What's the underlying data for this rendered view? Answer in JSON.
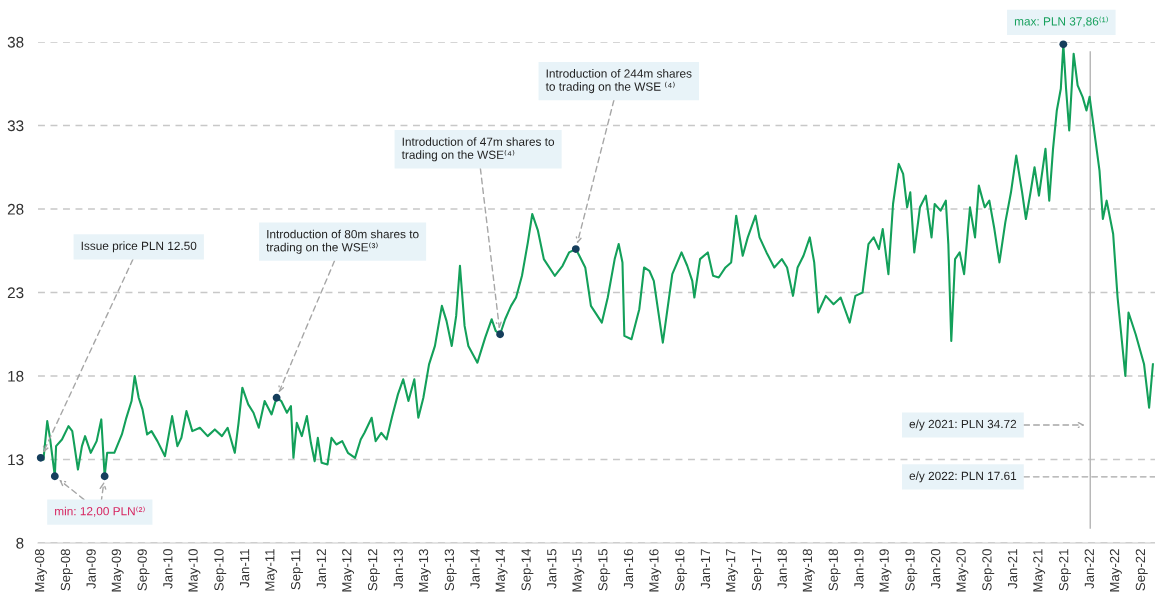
{
  "chart_data": {
    "type": "line",
    "x": [
      "2008-05-01",
      "2008-05-14",
      "2008-06-01",
      "2008-06-14",
      "2008-07-07",
      "2008-07-13",
      "2008-08-10",
      "2008-09-10",
      "2008-09-28",
      "2008-10-25",
      "2008-11-13",
      "2008-11-28",
      "2008-12-25",
      "2009-01-22",
      "2009-02-13",
      "2009-03-01",
      "2009-03-13",
      "2009-04-16",
      "2009-05-22",
      "2009-06-10",
      "2009-07-07",
      "2009-07-22",
      "2009-08-10",
      "2009-08-28",
      "2009-09-19",
      "2009-10-10",
      "2009-11-07",
      "2009-12-13",
      "2010-01-16",
      "2010-02-10",
      "2010-03-01",
      "2010-03-25",
      "2010-04-22",
      "2010-05-28",
      "2010-07-04",
      "2010-08-07",
      "2010-09-10",
      "2010-10-07",
      "2010-11-10",
      "2010-11-28",
      "2010-12-16",
      "2011-01-13",
      "2011-02-07",
      "2011-03-04",
      "2011-04-01",
      "2011-05-04",
      "2011-05-28",
      "2011-06-19",
      "2011-07-16",
      "2011-08-04",
      "2011-08-16",
      "2011-09-01",
      "2011-09-25",
      "2011-10-19",
      "2011-11-07",
      "2011-11-25",
      "2011-12-10",
      "2011-12-28",
      "2012-01-25",
      "2012-02-13",
      "2012-03-07",
      "2012-04-04",
      "2012-05-01",
      "2012-06-04",
      "2012-07-01",
      "2012-07-19",
      "2012-08-22",
      "2012-09-10",
      "2012-10-07",
      "2012-11-01",
      "2012-11-28",
      "2012-12-25",
      "2013-01-19",
      "2013-02-13",
      "2013-03-13",
      "2013-04-01",
      "2013-04-25",
      "2013-05-22",
      "2013-06-19",
      "2013-07-22",
      "2013-08-13",
      "2013-09-07",
      "2013-09-28",
      "2013-10-16",
      "2013-11-07",
      "2013-11-25",
      "2014-01-07",
      "2014-02-13",
      "2014-03-16",
      "2014-04-04",
      "2014-04-25",
      "2014-05-19",
      "2014-06-16",
      "2014-07-10",
      "2014-08-07",
      "2014-09-04",
      "2014-09-25",
      "2014-10-22",
      "2014-11-19",
      "2015-01-10",
      "2015-02-16",
      "2015-03-19",
      "2015-04-20",
      "2015-05-07",
      "2015-06-04",
      "2015-07-01",
      "2015-08-22",
      "2015-09-19",
      "2015-10-22",
      "2015-11-10",
      "2015-11-28",
      "2015-12-07",
      "2016-01-10",
      "2016-02-16",
      "2016-03-10",
      "2016-04-04",
      "2016-04-25",
      "2016-06-07",
      "2016-07-22",
      "2016-09-04",
      "2016-10-01",
      "2016-10-25",
      "2016-11-04",
      "2016-12-01",
      "2017-01-07",
      "2017-02-01",
      "2017-02-28",
      "2017-04-01",
      "2017-04-28",
      "2017-05-22",
      "2017-06-22",
      "2017-07-16",
      "2017-08-22",
      "2017-09-10",
      "2017-10-13",
      "2017-11-19",
      "2017-12-25",
      "2018-01-19",
      "2018-02-16",
      "2018-03-10",
      "2018-04-07",
      "2018-05-07",
      "2018-05-28",
      "2018-06-16",
      "2018-07-22",
      "2018-08-28",
      "2018-10-01",
      "2018-11-13",
      "2018-12-10",
      "2019-01-13",
      "2019-02-10",
      "2019-03-07",
      "2019-04-01",
      "2019-04-19",
      "2019-05-16",
      "2019-06-07",
      "2019-07-04",
      "2019-07-25",
      "2019-08-13",
      "2019-08-28",
      "2019-09-16",
      "2019-10-13",
      "2019-11-10",
      "2019-12-07",
      "2019-12-22",
      "2020-01-19",
      "2020-02-13",
      "2020-02-25",
      "2020-03-10",
      "2020-03-28",
      "2020-04-19",
      "2020-05-10",
      "2020-06-07",
      "2020-07-01",
      "2020-07-19",
      "2020-08-16",
      "2020-09-07",
      "2020-10-01",
      "2020-10-25",
      "2020-11-22",
      "2020-12-19",
      "2021-01-13",
      "2021-02-10",
      "2021-02-28",
      "2021-03-22",
      "2021-04-10",
      "2021-05-01",
      "2021-06-01",
      "2021-06-19",
      "2021-07-07",
      "2021-07-25",
      "2021-08-13",
      "2021-08-25",
      "2021-09-07",
      "2021-09-22",
      "2021-10-13",
      "2021-11-01",
      "2021-11-25",
      "2021-12-13",
      "2021-12-28",
      "2022-01-25",
      "2022-02-13",
      "2022-03-01",
      "2022-03-19",
      "2022-04-19",
      "2022-05-10",
      "2022-06-16",
      "2022-07-01",
      "2022-08-04",
      "2022-09-13",
      "2022-10-07",
      "2022-10-25"
    ],
    "series": [
      {
        "color": "#13a05a",
        "values": [
          13.1,
          13.0,
          15.3,
          14.3,
          12.0,
          13.8,
          14.2,
          15.0,
          14.7,
          12.4,
          13.8,
          14.4,
          13.4,
          14.1,
          15.4,
          12.0,
          13.4,
          13.4,
          14.5,
          15.4,
          16.5,
          18.0,
          16.7,
          16.0,
          14.5,
          14.7,
          14.1,
          13.2,
          15.6,
          13.8,
          14.3,
          15.9,
          14.7,
          14.9,
          14.4,
          14.8,
          14.4,
          14.9,
          13.4,
          15.2,
          17.3,
          16.3,
          15.8,
          14.9,
          16.5,
          15.7,
          16.7,
          16.5,
          15.8,
          16.2,
          13.1,
          15.2,
          14.4,
          15.6,
          14.0,
          12.9,
          14.3,
          12.8,
          12.7,
          14.3,
          13.9,
          14.1,
          13.4,
          13.1,
          14.2,
          14.6,
          15.5,
          14.1,
          14.6,
          14.2,
          15.6,
          16.9,
          17.8,
          16.5,
          17.8,
          15.5,
          16.7,
          18.7,
          19.8,
          22.2,
          21.3,
          19.8,
          21.6,
          24.6,
          21.0,
          19.8,
          18.8,
          20.3,
          21.4,
          20.7,
          20.5,
          21.4,
          22.2,
          22.7,
          24.0,
          26.0,
          27.7,
          26.7,
          25.0,
          24.0,
          24.6,
          25.4,
          25.6,
          25.2,
          24.5,
          22.2,
          21.2,
          22.7,
          25.0,
          25.9,
          24.8,
          20.4,
          20.2,
          22.0,
          24.5,
          24.3,
          23.7,
          20.0,
          24.1,
          25.4,
          24.6,
          23.7,
          22.7,
          25.0,
          25.4,
          24.0,
          23.9,
          24.5,
          24.8,
          27.6,
          25.2,
          26.3,
          27.6,
          26.3,
          25.4,
          24.5,
          25.0,
          24.5,
          22.8,
          24.5,
          25.2,
          26.3,
          24.8,
          21.8,
          22.8,
          22.3,
          22.7,
          21.2,
          22.8,
          23.0,
          25.9,
          26.3,
          25.6,
          26.8,
          24.1,
          28.3,
          30.7,
          30.1,
          28.1,
          29.0,
          25.4,
          28.1,
          28.8,
          26.3,
          28.3,
          27.9,
          28.5,
          25.9,
          20.1,
          25.0,
          25.4,
          24.1,
          28.1,
          26.3,
          29.4,
          28.1,
          28.5,
          26.8,
          24.8,
          27.2,
          29.0,
          31.2,
          29.0,
          27.4,
          29.0,
          30.5,
          28.8,
          31.6,
          28.5,
          31.6,
          33.9,
          35.2,
          37.86,
          35.2,
          32.7,
          37.3,
          35.4,
          34.7,
          33.9,
          34.72,
          32.1,
          30.3,
          27.4,
          28.5,
          26.5,
          22.7,
          18.0,
          21.8,
          20.5,
          18.7,
          16.1,
          18.7
        ]
      },
      {
        "type": "scatter",
        "color": "#153e5c",
        "marker": "circle",
        "x": [
          "2008-05-01",
          "2008-07-07",
          "2009-03-01",
          "2011-05-28",
          "2014-04-25",
          "2015-04-20",
          "2021-08-25"
        ],
        "values": [
          13.1,
          12.0,
          12.0,
          16.7,
          20.5,
          25.6,
          37.86
        ]
      }
    ],
    "xlim": [
      "2008-04-18",
      "2022-11-04"
    ],
    "xticks": [
      {
        "value": "2008-05",
        "label": "May-08"
      },
      {
        "value": "2008-09",
        "label": "Sep-08"
      },
      {
        "value": "2009-01",
        "label": "Jan-09"
      },
      {
        "value": "2009-05",
        "label": "May-09"
      },
      {
        "value": "2009-09",
        "label": "Sep-09"
      },
      {
        "value": "2010-01",
        "label": "Jan-10"
      },
      {
        "value": "2010-05",
        "label": "May-10"
      },
      {
        "value": "2010-09",
        "label": "Sep-10"
      },
      {
        "value": "2011-01",
        "label": "Jan-11"
      },
      {
        "value": "2011-05",
        "label": "May-11"
      },
      {
        "value": "2011-09",
        "label": "Sep-11"
      },
      {
        "value": "2012-01",
        "label": "Jan-12"
      },
      {
        "value": "2012-05",
        "label": "May-12"
      },
      {
        "value": "2012-09",
        "label": "Sep-12"
      },
      {
        "value": "2013-01",
        "label": "Jan-13"
      },
      {
        "value": "2013-05",
        "label": "May-13"
      },
      {
        "value": "2013-09",
        "label": "Sep-13"
      },
      {
        "value": "2014-01",
        "label": "Jan-14"
      },
      {
        "value": "2014-05",
        "label": "May-14"
      },
      {
        "value": "2014-09",
        "label": "Sep-14"
      },
      {
        "value": "2015-01",
        "label": "Jan-15"
      },
      {
        "value": "2015-05",
        "label": "May-15"
      },
      {
        "value": "2015-09",
        "label": "Sep-15"
      },
      {
        "value": "2016-01",
        "label": "Jan-16"
      },
      {
        "value": "2016-05",
        "label": "May-16"
      },
      {
        "value": "2016-09",
        "label": "Sep-16"
      },
      {
        "value": "2017-01",
        "label": "Jan-17"
      },
      {
        "value": "2017-05",
        "label": "May-17"
      },
      {
        "value": "2017-09",
        "label": "Sep-17"
      },
      {
        "value": "2018-01",
        "label": "Jan-18"
      },
      {
        "value": "2018-05",
        "label": "May-18"
      },
      {
        "value": "2018-09",
        "label": "Sep-18"
      },
      {
        "value": "2019-01",
        "label": "Jan-19"
      },
      {
        "value": "2019-05",
        "label": "May-19"
      },
      {
        "value": "2019-09",
        "label": "Sep-19"
      },
      {
        "value": "2020-01",
        "label": "Jan-20"
      },
      {
        "value": "2020-05",
        "label": "May-20"
      },
      {
        "value": "2020-09",
        "label": "Sep-20"
      },
      {
        "value": "2021-01",
        "label": "Jan-21"
      },
      {
        "value": "2021-05",
        "label": "May-21"
      },
      {
        "value": "2021-09",
        "label": "Sep-21"
      },
      {
        "value": "2022-01",
        "label": "Jan-22"
      },
      {
        "value": "2022-05",
        "label": "May-22"
      },
      {
        "value": "2022-09",
        "label": "Sep-22"
      }
    ],
    "ylim": [
      8,
      38
    ],
    "yticks": [
      8,
      13,
      18,
      23,
      28,
      33,
      38
    ],
    "grid": "y",
    "ref_lines": [
      {
        "axis": "x",
        "value": "2021-12-31",
        "label": "e/y 2021: PLN 34.72",
        "color": "#b4b4b4",
        "line_style": "solid"
      }
    ],
    "annotations": [
      {
        "text": "Issue price PLN 12.50",
        "x": "2008-05-01",
        "y": 13.1
      },
      {
        "text": "min: 12,00 PLN⁽²⁾",
        "x": "2008-07-07",
        "y": 12.0
      },
      {
        "text": "Introduction of 80m shares to\ntrading on the WSE⁽³⁾",
        "x": "2011-05-28",
        "y": 16.7
      },
      {
        "text": "Introduction of 47m shares to\ntrading on the WSE⁽⁴⁾",
        "x": "2014-04-25",
        "y": 20.5
      },
      {
        "text": "Introduction of 244m shares\nto trading on the WSE ⁽⁴⁾",
        "x": "2015-04-20",
        "y": 25.6
      },
      {
        "text": "max: PLN 37,86⁽¹⁾",
        "x": "2021-08-25",
        "y": 37.86
      },
      "e/y 2022: PLN 17.61"
    ]
  }
}
